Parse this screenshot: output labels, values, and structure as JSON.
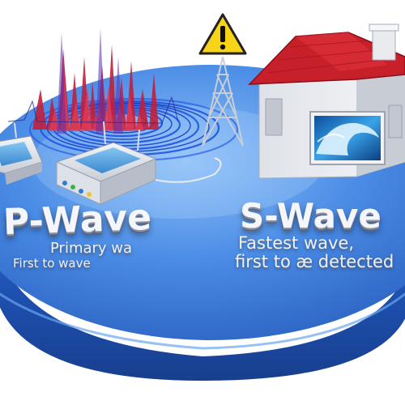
{
  "labels": {
    "p_wave_title": "P-Wave",
    "p_wave_line1": "Primary wa",
    "p_wave_line2": "First to wave",
    "s_wave_title": "S-Wave",
    "s_wave_line1": "Fastest wave,",
    "s_wave_line2": "first to æ detected"
  },
  "icons": {
    "warning": "warning-triangle-icon",
    "tower": "radio-tower",
    "house": "house",
    "seismograph": "seismograph-device"
  },
  "colors": {
    "platform_blue": "#2f6fd0",
    "platform_dark": "#1a4aa8",
    "spike_red": "#d8233a",
    "ripple_blue": "#1f55e0",
    "roof_red": "#c8202a",
    "warning_yellow": "#f7d417"
  }
}
